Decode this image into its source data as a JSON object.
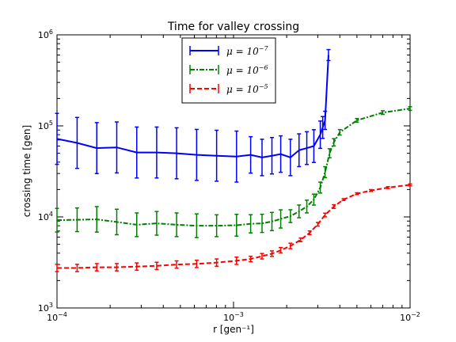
{
  "chart_data": {
    "type": "line",
    "title": "Time for valley crossing",
    "xlabel": "r [gen⁻¹]",
    "ylabel": "crossing time [gen]",
    "xscale": "log",
    "yscale": "log",
    "xlim": [
      0.0001,
      0.01
    ],
    "ylim": [
      1000,
      1000000
    ],
    "grid": false,
    "legend_position": "top-center",
    "x_tick_labels": [
      {
        "value": 0.0001,
        "base": "10",
        "exp": "−4"
      },
      {
        "value": 0.001,
        "base": "10",
        "exp": "−3"
      },
      {
        "value": 0.01,
        "base": "10",
        "exp": "−2"
      }
    ],
    "y_tick_labels": [
      {
        "value": 1000,
        "base": "10",
        "exp": "3"
      },
      {
        "value": 10000,
        "base": "10",
        "exp": "4"
      },
      {
        "value": 100000,
        "base": "10",
        "exp": "5"
      },
      {
        "value": 1000000,
        "base": "10",
        "exp": "6"
      }
    ],
    "series": [
      {
        "name": "μ = 10⁻⁷",
        "legend_base": "μ = 10",
        "legend_exp": "−7",
        "color": "#0000ff",
        "dash": "solid",
        "x": [
          0.0001,
          0.00013,
          0.000168,
          0.000218,
          0.000283,
          0.000367,
          0.000476,
          0.000618,
          0.000802,
          0.00104,
          0.00125,
          0.00145,
          0.00165,
          0.00185,
          0.0021,
          0.00235,
          0.0026,
          0.00285,
          0.0031,
          0.0032,
          0.0033,
          0.00345
        ],
        "y": [
          72000,
          65000,
          57000,
          58000,
          51000,
          51000,
          50000,
          48000,
          47000,
          46000,
          48000,
          45000,
          47000,
          49000,
          45000,
          54000,
          57000,
          60000,
          80000,
          96000,
          115000,
          600000
        ],
        "err": [
          0.28,
          0.28,
          0.28,
          0.28,
          0.28,
          0.28,
          0.28,
          0.28,
          0.28,
          0.28,
          0.2,
          0.2,
          0.2,
          0.2,
          0.2,
          0.18,
          0.18,
          0.18,
          0.15,
          0.12,
          0.1,
          0.06
        ]
      },
      {
        "name": "μ = 10⁻⁶",
        "legend_base": "μ = 10",
        "legend_exp": "−6",
        "color": "#008000",
        "dash": "dashdot",
        "x": [
          0.0001,
          0.00013,
          0.000168,
          0.000218,
          0.000283,
          0.000367,
          0.000476,
          0.000618,
          0.000802,
          0.00104,
          0.00125,
          0.00145,
          0.00165,
          0.00185,
          0.0021,
          0.00235,
          0.0026,
          0.00285,
          0.0031,
          0.0033,
          0.0035,
          0.0037,
          0.004,
          0.005,
          0.007,
          0.01
        ],
        "y": [
          9200,
          9300,
          9400,
          8800,
          8200,
          8500,
          8200,
          8000,
          8000,
          8100,
          8400,
          8500,
          8900,
          9500,
          10200,
          11500,
          13000,
          15500,
          21000,
          31000,
          50000,
          66000,
          85000,
          115000,
          140000,
          155000
        ],
        "err": [
          0.13,
          0.13,
          0.14,
          0.14,
          0.13,
          0.13,
          0.13,
          0.13,
          0.12,
          0.12,
          0.1,
          0.1,
          0.1,
          0.1,
          0.07,
          0.07,
          0.07,
          0.06,
          0.06,
          0.06,
          0.05,
          0.04,
          0.03,
          0.02,
          0.02,
          0.02
        ]
      },
      {
        "name": "μ = 10⁻⁵",
        "legend_base": "μ = 10",
        "legend_exp": "−5",
        "color": "#ff0000",
        "dash": "dashed",
        "x": [
          0.0001,
          0.00013,
          0.000168,
          0.000218,
          0.000283,
          0.000367,
          0.000476,
          0.000618,
          0.000802,
          0.00104,
          0.00125,
          0.00145,
          0.00165,
          0.00185,
          0.0021,
          0.0024,
          0.0027,
          0.003,
          0.0033,
          0.0037,
          0.0042,
          0.005,
          0.006,
          0.0075,
          0.01
        ],
        "y": [
          2750,
          2750,
          2800,
          2800,
          2850,
          2900,
          3000,
          3050,
          3150,
          3300,
          3450,
          3700,
          3950,
          4300,
          4800,
          5600,
          6700,
          8300,
          10500,
          13000,
          15500,
          18000,
          19500,
          21000,
          22500
        ],
        "err": [
          0.04,
          0.04,
          0.04,
          0.04,
          0.04,
          0.04,
          0.04,
          0.04,
          0.04,
          0.04,
          0.03,
          0.03,
          0.03,
          0.03,
          0.03,
          0.02,
          0.02,
          0.02,
          0.02,
          0.02,
          0.01,
          0.01,
          0.01,
          0.01,
          0.01
        ]
      }
    ]
  }
}
